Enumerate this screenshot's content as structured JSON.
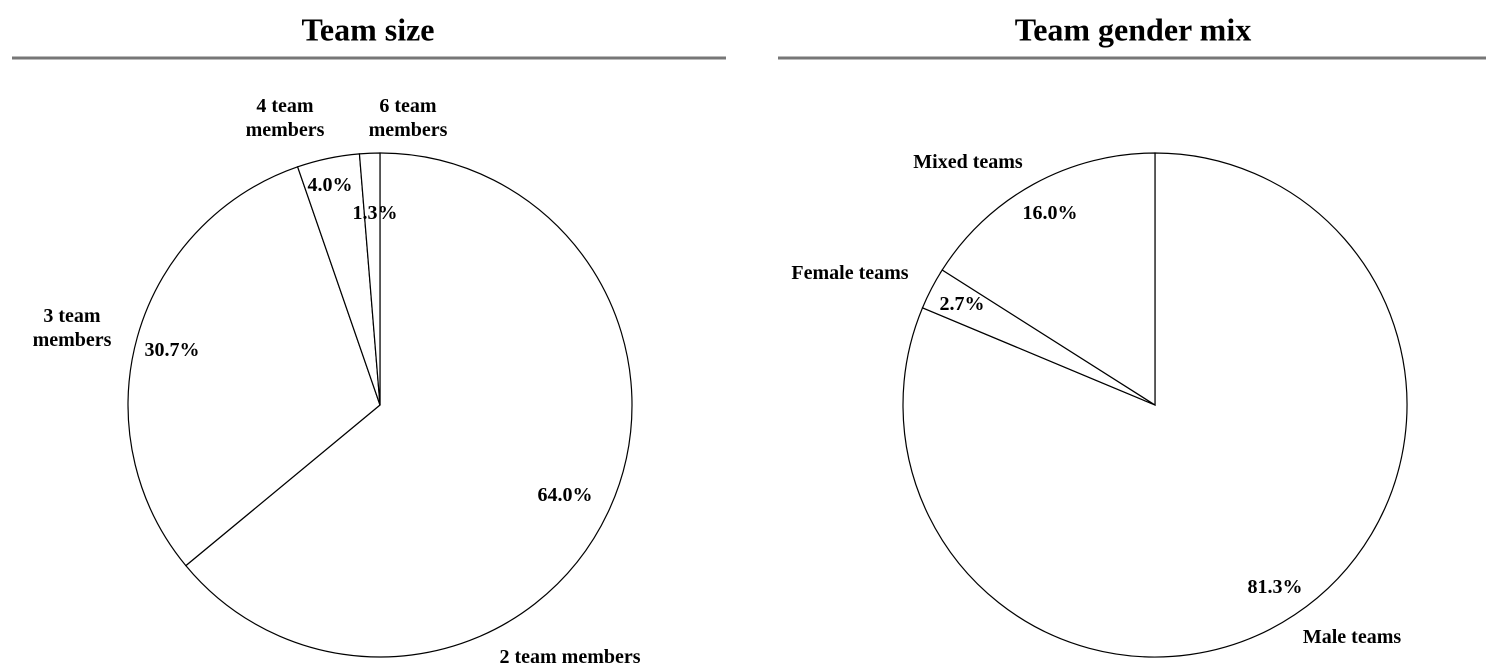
{
  "chart_data": [
    {
      "type": "pie",
      "title": "Team size",
      "categories": [
        "2 team members",
        "3 team members",
        "4 team members",
        "6 team members"
      ],
      "values": [
        64.0,
        30.7,
        4.0,
        1.3
      ],
      "value_labels": [
        "64.0%",
        "30.7%",
        "4.0%",
        "1.3%"
      ],
      "color": "#ffffff"
    },
    {
      "type": "pie",
      "title": "Team gender mix",
      "categories": [
        "Male teams",
        "Female teams",
        "Mixed teams"
      ],
      "values": [
        81.3,
        2.7,
        16.0
      ],
      "value_labels": [
        "81.3%",
        "2.7%",
        "16.0%"
      ],
      "color": "#ffffff"
    }
  ]
}
